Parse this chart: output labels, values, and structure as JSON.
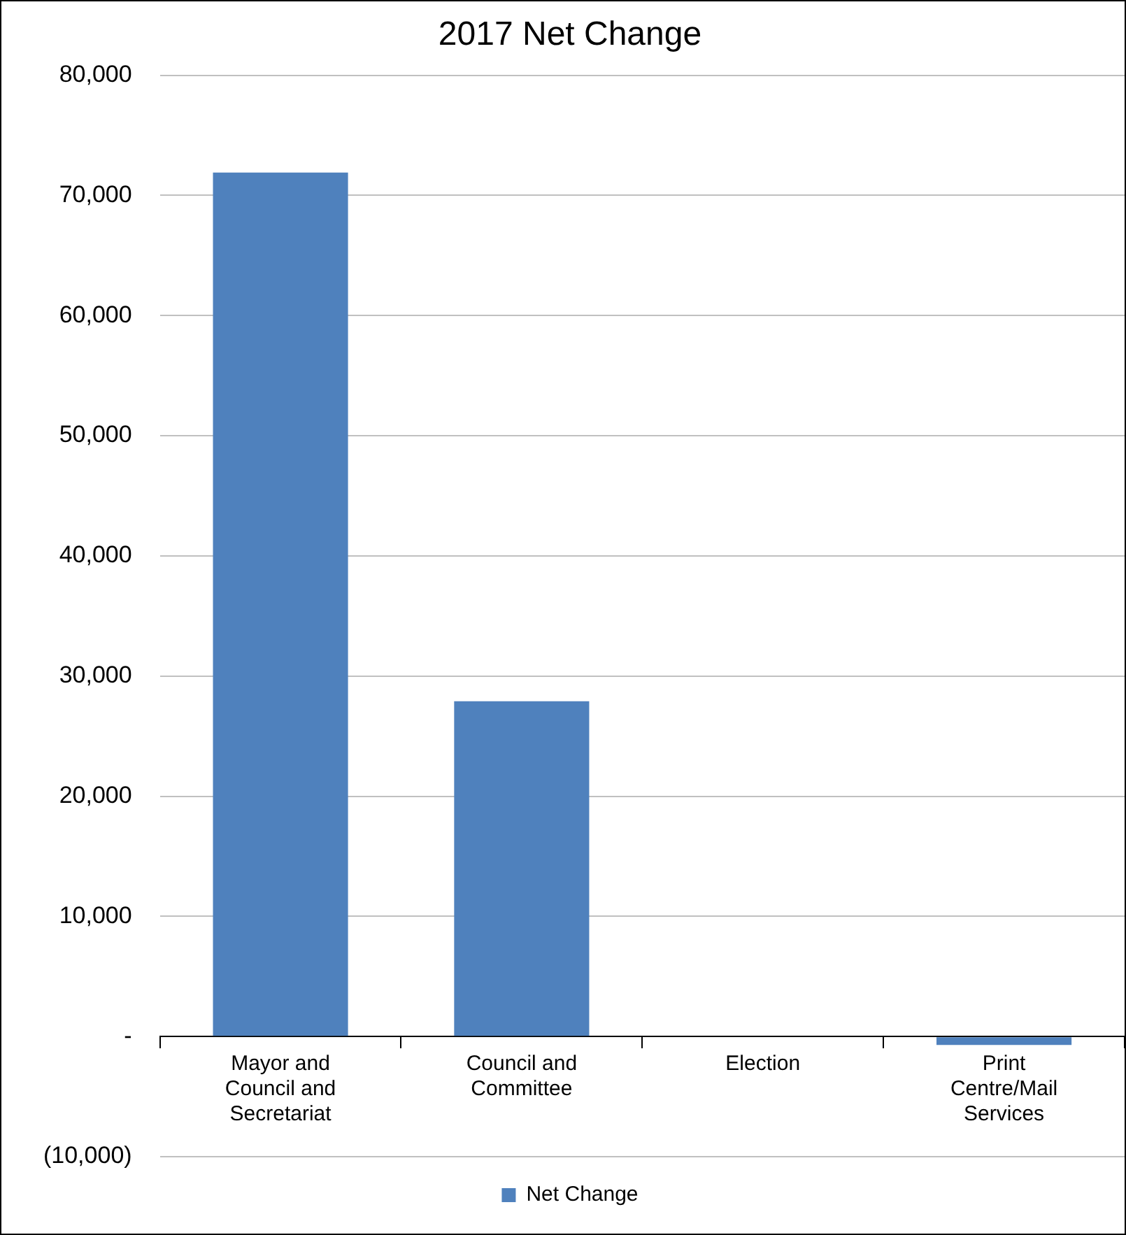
{
  "chart_data": {
    "type": "bar",
    "title": "2017 Net Change",
    "categories": [
      "Mayor and Council and Secretariat",
      "Council and Committee",
      "Election",
      "Print Centre/Mail Services"
    ],
    "series": [
      {
        "name": "Net Change",
        "color": "#4f81bd",
        "values": [
          71900,
          27900,
          0,
          -700
        ]
      }
    ],
    "ylim": [
      -10000,
      80000
    ],
    "yticks": [
      {
        "value": -10000,
        "label": "(10,000)"
      },
      {
        "value": 0,
        "label": "-"
      },
      {
        "value": 10000,
        "label": "10,000"
      },
      {
        "value": 20000,
        "label": "20,000"
      },
      {
        "value": 30000,
        "label": "30,000"
      },
      {
        "value": 40000,
        "label": "40,000"
      },
      {
        "value": 50000,
        "label": "50,000"
      },
      {
        "value": 60000,
        "label": "60,000"
      },
      {
        "value": 70000,
        "label": "70,000"
      },
      {
        "value": 80000,
        "label": "80,000"
      }
    ],
    "grid": "y",
    "legend": "bottom"
  }
}
